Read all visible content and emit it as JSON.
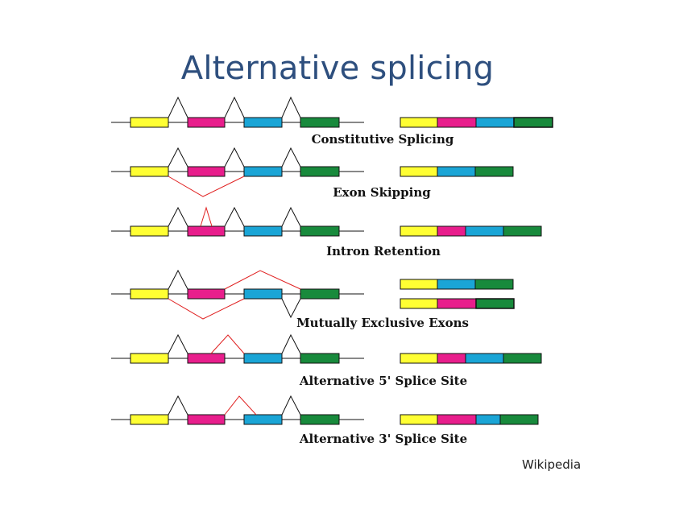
{
  "title": "Alternative splicing",
  "credit": "Wikipedia",
  "colors": {
    "exon1": "#ffff33",
    "exon2": "#e81e8c",
    "exon3": "#1aa5d6",
    "exon4": "#188a3c",
    "splice_line": "#111111",
    "alt_line": "#e02020"
  },
  "rows": [
    {
      "label": "Constitutive Splicing",
      "mrna": [
        "exon1",
        "exon2",
        "exon3",
        "exon4"
      ]
    },
    {
      "label": "Exon Skipping",
      "mrna": [
        "exon1",
        "exon3",
        "exon4"
      ]
    },
    {
      "label": "Intron Retention",
      "mrna": [
        "exon1",
        "exon2",
        "exon3",
        "exon4"
      ]
    },
    {
      "label": "Mutually Exclusive Exons",
      "mrna": [
        "exon1",
        "exon3",
        "exon4"
      ],
      "mrna_alt": [
        "exon1",
        "exon2",
        "exon4"
      ]
    },
    {
      "label": "Alternative 5' Splice Site",
      "mrna": [
        "exon1",
        "exon2",
        "exon3",
        "exon4"
      ]
    },
    {
      "label": "Alternative 3' Splice Site",
      "mrna": [
        "exon1",
        "exon2",
        "exon3",
        "exon4"
      ]
    }
  ]
}
